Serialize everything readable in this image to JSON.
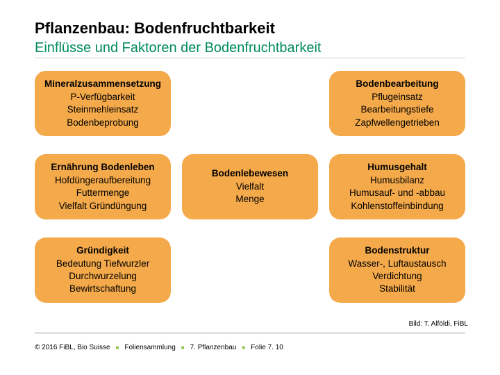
{
  "header": {
    "title": "Pflanzenbau: Bodenfruchtbarkeit",
    "subtitle": "Einflüsse und Faktoren der Bodenfruchtbarkeit"
  },
  "cards": {
    "r0c0": {
      "title": "Mineralzusammensetzung",
      "l1": "P-Verfügbarkeit",
      "l2": "Steinmehleinsatz",
      "l3": "Bodenbeprobung"
    },
    "r0c2": {
      "title": "Bodenbearbeitung",
      "l1": "Pflugeinsatz",
      "l2": "Bearbeitungstiefe",
      "l3": "Zapfwellengetrieben"
    },
    "r1c0": {
      "title": "Ernährung Bodenleben",
      "l1": "Hofdüngeraufbereitung",
      "l2": "Futtermenge",
      "l3": "Vielfalt Gründüngung"
    },
    "r1c1": {
      "title": "Bodenlebewesen",
      "l1": "Vielfalt",
      "l2": "Menge",
      "l3": ""
    },
    "r1c2": {
      "title": "Humusgehalt",
      "l1": "Humusbilanz",
      "l2": "Humusauf- und -abbau",
      "l3": "Kohlenstoffeinbindung"
    },
    "r2c0": {
      "title": "Gründigkeit",
      "l1": "Bedeutung Tiefwurzler",
      "l2": "Durchwurzelung",
      "l3": "Bewirtschaftung"
    },
    "r2c2": {
      "title": "Bodenstruktur",
      "l1": "Wasser-, Luftaustausch",
      "l2": "Verdichtung",
      "l3": "Stabilität"
    }
  },
  "colors": {
    "card_bg": "#f4a94a",
    "subtitle_color": "#008b5c",
    "sep_color": "#8bc34a"
  },
  "attribution": "Bild: T. Alföldi, FiBL",
  "footer": {
    "copyright": "© 2016 FiBL, Bio Suisse",
    "part1": "Foliensammlung",
    "part2": "7. Pflanzenbau",
    "part3": "Folie 7. 10"
  }
}
